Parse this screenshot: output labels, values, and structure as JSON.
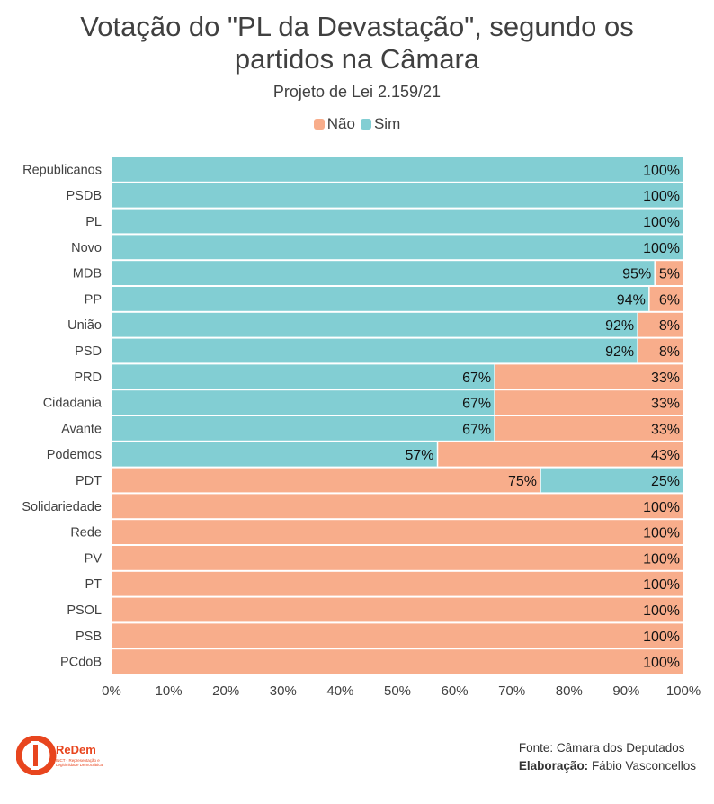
{
  "title_line1": "Votação do \"PL da Devastação\", segundo os",
  "title_line2": "partidos na Câmara",
  "subtitle": "Projeto de Lei 2.159/21",
  "colors": {
    "nao": "#f8ad8b",
    "sim": "#82ced3"
  },
  "chart_data": {
    "type": "bar",
    "orientation": "horizontal",
    "stacked": true,
    "title": "Votação do \"PL da Devastação\", segundo os partidos na Câmara",
    "subtitle": "Projeto de Lei 2.159/21",
    "categories": [
      "Republicanos",
      "PSDB",
      "PL",
      "Novo",
      "MDB",
      "PP",
      "União",
      "PSD",
      "PRD",
      "Cidadania",
      "Avante",
      "Podemos",
      "PDT",
      "Solidariedade",
      "Rede",
      "PV",
      "PT",
      "PSOL",
      "PSB",
      "PCdoB"
    ],
    "series": [
      {
        "name": "Sim",
        "values": [
          100,
          100,
          100,
          100,
          95,
          94,
          92,
          92,
          67,
          67,
          67,
          57,
          25,
          0,
          0,
          0,
          0,
          0,
          0,
          0
        ]
      },
      {
        "name": "Não",
        "values": [
          0,
          0,
          0,
          0,
          5,
          6,
          8,
          8,
          33,
          33,
          33,
          43,
          75,
          100,
          100,
          100,
          100,
          100,
          100,
          100
        ]
      }
    ],
    "legend_order": [
      "Não",
      "Sim"
    ],
    "legend_position": "top",
    "xlim": [
      0,
      100
    ],
    "xticks": [
      "0%",
      "10%",
      "20%",
      "30%",
      "40%",
      "50%",
      "60%",
      "70%",
      "80%",
      "90%",
      "100%"
    ],
    "grid": false
  },
  "footer": {
    "source": "Fonte: Câmara dos Deputados",
    "credit_label": "Elaboração:",
    "credit_name": " Fábio Vasconcellos"
  },
  "logo": {
    "name": "ReDem",
    "tagline1": "INCT • Representação e",
    "tagline2": "Legitimidade Democrática",
    "color": "#e8451e"
  }
}
